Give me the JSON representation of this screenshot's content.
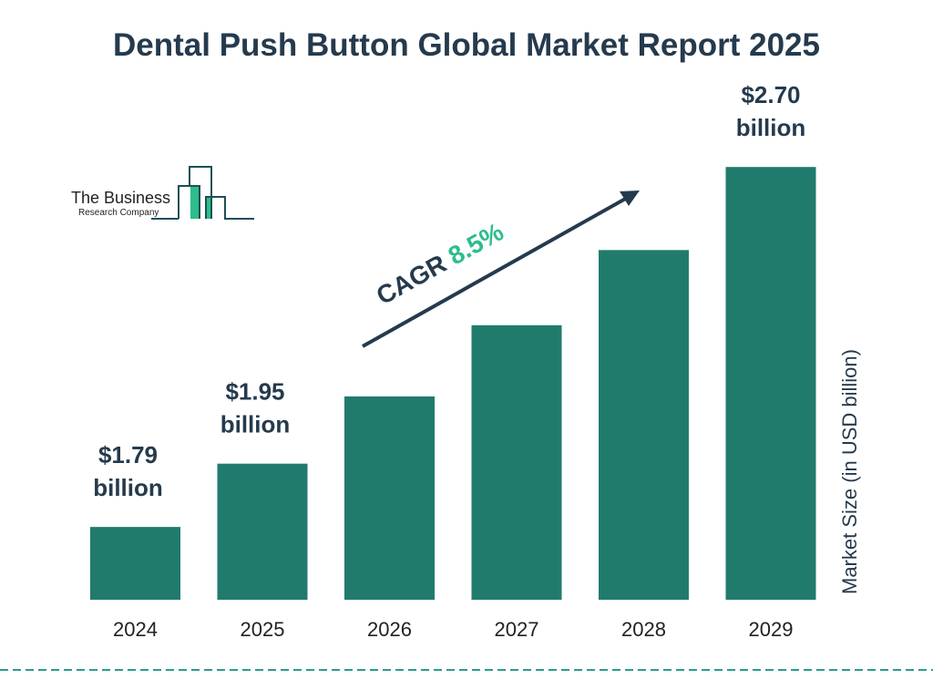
{
  "title": "Dental Push Button Global Market Report 2025",
  "logo": {
    "line1": "The Business",
    "line2": "Research Company"
  },
  "colors": {
    "bar": "#217b6d",
    "text": "#253a4d",
    "accent": "#2dbd8a",
    "divider": "#2a9d8f"
  },
  "chart_data": {
    "type": "bar",
    "title": "Dental Push Button Global Market Report 2025",
    "categories": [
      "2024",
      "2025",
      "2026",
      "2027",
      "2028",
      "2029"
    ],
    "values": [
      1.79,
      1.95,
      2.12,
      2.3,
      2.49,
      2.7
    ],
    "data_labels": [
      {
        "value": "$1.79",
        "unit": "billion"
      },
      {
        "value": "$1.95",
        "unit": "billion"
      },
      null,
      null,
      null,
      {
        "value": "$2.70",
        "unit": "billion"
      }
    ],
    "ylabel": "Market Size (in USD billion)",
    "xlabel": "",
    "annotation": {
      "label": "CAGR",
      "value": "8.5%"
    },
    "grid": false,
    "legend": "none"
  }
}
